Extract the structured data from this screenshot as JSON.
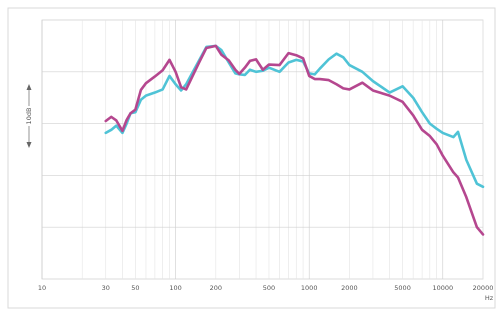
{
  "chart_data": {
    "type": "line",
    "title": "",
    "xlabel": "Hz",
    "ylabel": "10dB",
    "x_scale": "log",
    "xlim": [
      10,
      20000
    ],
    "x_ticks": [
      10,
      30,
      50,
      100,
      200,
      500,
      1000,
      2000,
      5000,
      10000,
      20000
    ],
    "x_tick_labels": [
      "10",
      "30",
      "50",
      "100",
      "200",
      "500",
      "1000",
      "2000",
      "5000",
      "10000",
      "20000"
    ],
    "ylim": [
      -40,
      10
    ],
    "grid": true,
    "legend": "none",
    "series": [
      {
        "color": "#4fc3d6",
        "points": [
          [
            30,
            -11.8
          ],
          [
            33,
            -11.2
          ],
          [
            36,
            -10.4
          ],
          [
            40,
            -11.8
          ],
          [
            43,
            -10
          ],
          [
            46,
            -8
          ],
          [
            50,
            -7.8
          ],
          [
            55,
            -5.4
          ],
          [
            60,
            -4.6
          ],
          [
            70,
            -4
          ],
          [
            80,
            -3.4
          ],
          [
            90,
            -0.8
          ],
          [
            100,
            -2.4
          ],
          [
            110,
            -3.6
          ],
          [
            120,
            -2.4
          ],
          [
            150,
            2.2
          ],
          [
            170,
            4.8
          ],
          [
            200,
            5
          ],
          [
            220,
            4.2
          ],
          [
            250,
            1.8
          ],
          [
            280,
            -0.3
          ],
          [
            300,
            -0.5
          ],
          [
            330,
            -0.6
          ],
          [
            360,
            0.4
          ],
          [
            400,
            0
          ],
          [
            450,
            0.2
          ],
          [
            500,
            0.8
          ],
          [
            600,
            0
          ],
          [
            700,
            1.8
          ],
          [
            800,
            2.3
          ],
          [
            900,
            2
          ],
          [
            1000,
            -0.3
          ],
          [
            1100,
            -0.5
          ],
          [
            1200,
            0.6
          ],
          [
            1400,
            2.4
          ],
          [
            1600,
            3.5
          ],
          [
            1800,
            2.8
          ],
          [
            2000,
            1.3
          ],
          [
            2500,
            0
          ],
          [
            3000,
            -1.8
          ],
          [
            4000,
            -4
          ],
          [
            5000,
            -2.8
          ],
          [
            6000,
            -5
          ],
          [
            7000,
            -7.8
          ],
          [
            8000,
            -10
          ],
          [
            9000,
            -11
          ],
          [
            10000,
            -11.8
          ],
          [
            12000,
            -12.6
          ],
          [
            13000,
            -11.6
          ],
          [
            15000,
            -17
          ],
          [
            18000,
            -21.6
          ],
          [
            20000,
            -22.2
          ]
        ]
      },
      {
        "color": "#b5478f",
        "points": [
          [
            30,
            -9.5
          ],
          [
            33,
            -8.7
          ],
          [
            36,
            -9.4
          ],
          [
            40,
            -11.4
          ],
          [
            43,
            -9.3
          ],
          [
            46,
            -8
          ],
          [
            50,
            -7.3
          ],
          [
            55,
            -3.5
          ],
          [
            60,
            -2.2
          ],
          [
            70,
            -0.9
          ],
          [
            80,
            0.3
          ],
          [
            90,
            2.3
          ],
          [
            100,
            0
          ],
          [
            110,
            -3
          ],
          [
            120,
            -3.4
          ],
          [
            150,
            1.8
          ],
          [
            170,
            4.6
          ],
          [
            200,
            5
          ],
          [
            220,
            3.3
          ],
          [
            250,
            2.2
          ],
          [
            280,
            0.4
          ],
          [
            300,
            -0.4
          ],
          [
            330,
            0.8
          ],
          [
            360,
            2.1
          ],
          [
            400,
            2.4
          ],
          [
            450,
            0.4
          ],
          [
            500,
            1.4
          ],
          [
            600,
            1.3
          ],
          [
            700,
            3.6
          ],
          [
            800,
            3.2
          ],
          [
            900,
            2.6
          ],
          [
            1000,
            -0.8
          ],
          [
            1100,
            -1.4
          ],
          [
            1200,
            -1.4
          ],
          [
            1400,
            -1.6
          ],
          [
            1600,
            -2.4
          ],
          [
            1800,
            -3.2
          ],
          [
            2000,
            -3.4
          ],
          [
            2500,
            -2.1
          ],
          [
            3000,
            -3.6
          ],
          [
            4000,
            -4.6
          ],
          [
            5000,
            -5.8
          ],
          [
            6000,
            -8.4
          ],
          [
            7000,
            -11.2
          ],
          [
            8000,
            -12.4
          ],
          [
            9000,
            -14
          ],
          [
            10000,
            -16.2
          ],
          [
            12000,
            -19.4
          ],
          [
            13000,
            -20.4
          ],
          [
            15000,
            -24.2
          ],
          [
            18000,
            -30
          ],
          [
            20000,
            -31.4
          ]
        ]
      }
    ]
  }
}
